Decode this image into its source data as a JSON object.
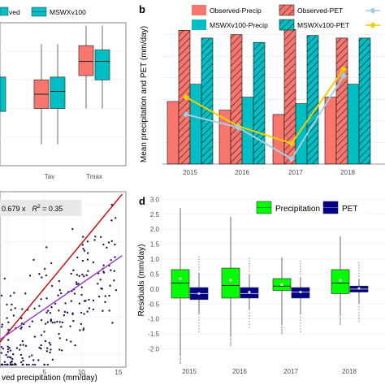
{
  "colors": {
    "observed": "#f8766d",
    "mswx": "#00bfc4",
    "observed_pet_fill": "#f8766d",
    "mswx_pet_fill": "#00bfc4",
    "line_observed": "#f0d000",
    "line_mswx": "#a6cee3",
    "precip_box": "#00ff00",
    "pet_box": "#00008b",
    "fit_red": "#cc0000",
    "fit_purple": "#9933cc",
    "panel_bg": "#ebebeb",
    "grid": "#ffffff"
  },
  "panel_a": {
    "legend": [
      "ved",
      "MSWXv100"
    ],
    "x_labels": [
      "Tav",
      "Tmax"
    ]
  },
  "panel_b": {
    "label": "b",
    "ylabel": "Mean precipitation and PET (mm/day)",
    "legend": [
      "Observed-Precip",
      "Observed-PET",
      "MSWXv100-Precip",
      "MSWXv100-PET"
    ]
  },
  "panel_c": {
    "equation_prefix": "0.679 x",
    "equation_r2": "R",
    "equation_r2_value": " = 0.35",
    "xlabel": "ved precipitation (mm/day)",
    "x_ticks": [
      "5",
      "10",
      "15"
    ]
  },
  "panel_d": {
    "label": "d",
    "ylabel": "Residuals (mm/day)",
    "legend": [
      "Precipitation",
      "PET"
    ]
  },
  "chart_data": [
    {
      "type": "bar",
      "panel": "b",
      "categories": [
        "2015",
        "2016",
        "2017",
        "2018"
      ],
      "ylim": [
        0,
        3.2
      ],
      "series": [
        {
          "name": "Observed-Precip",
          "values": [
            1.45,
            1.25,
            1.15,
            1.55
          ]
        },
        {
          "name": "Observed-PET",
          "values": [
            3.1,
            3.0,
            3.12,
            2.92
          ]
        },
        {
          "name": "MSWXv100-Precip",
          "values": [
            1.85,
            1.55,
            1.4,
            1.85
          ]
        },
        {
          "name": "MSWXv100-PET",
          "values": [
            2.92,
            2.82,
            2.98,
            2.92
          ]
        }
      ],
      "lines": [
        {
          "color_key": "line_observed",
          "values": [
            1.55,
            0.88,
            0.48,
            2.2
          ]
        },
        {
          "color_key": "line_mswx",
          "values": [
            1.15,
            0.85,
            0.12,
            2.05
          ]
        }
      ]
    },
    {
      "type": "box",
      "panel": "d",
      "categories": [
        "2015",
        "2016",
        "2017",
        "2018"
      ],
      "ylim": [
        -2.5,
        3.2
      ],
      "y_ticks": [
        "3.0",
        "2.5",
        "2.0",
        "1.5",
        "1.0",
        "0.5",
        "0.0",
        "-0.5",
        "-1.0",
        "-1.5",
        "-2.0"
      ],
      "series": [
        {
          "name": "Precipitation",
          "stats": [
            {
              "low": -2.25,
              "q1": -0.3,
              "median": 0.2,
              "q3": 0.65,
              "high": 2.55,
              "mean": 0.35
            },
            {
              "low": -1.6,
              "q1": -0.3,
              "median": 0.12,
              "q3": 0.7,
              "high": 2.25,
              "mean": 0.3
            },
            {
              "low": -1.2,
              "q1": -0.05,
              "median": 0.1,
              "q3": 0.35,
              "high": 0.9,
              "mean": 0.15
            },
            {
              "low": -0.9,
              "q1": -0.15,
              "median": 0.2,
              "q3": 0.65,
              "high": 1.6,
              "mean": 0.3
            }
          ]
        },
        {
          "name": "PET",
          "stats": [
            {
              "low": -0.85,
              "q1": -0.35,
              "median": -0.15,
              "q3": 0.05,
              "high": 0.55,
              "mean": -0.15
            },
            {
              "low": -0.7,
              "q1": -0.3,
              "median": -0.15,
              "q3": 0.05,
              "high": 0.5,
              "mean": -0.1
            },
            {
              "low": -0.85,
              "q1": -0.3,
              "median": -0.1,
              "q3": 0.05,
              "high": 0.4,
              "mean": -0.1
            },
            {
              "low": -0.5,
              "q1": -0.1,
              "median": 0.0,
              "q3": 0.1,
              "high": 0.35,
              "mean": 0.02
            }
          ]
        }
      ]
    },
    {
      "type": "scatter",
      "panel": "c",
      "xlim": [
        -1,
        16
      ],
      "ylim": [
        -1,
        13
      ],
      "x_ticks": [
        5,
        10,
        15
      ],
      "lines": [
        {
          "color_key": "fit_red",
          "x": [
            -1,
            15.5
          ],
          "y": [
            1.0,
            12.8
          ]
        },
        {
          "color_key": "fit_purple",
          "x": [
            -1,
            15.5
          ],
          "y": [
            1.2,
            7.9
          ]
        }
      ]
    },
    {
      "type": "box",
      "panel": "a",
      "categories": [
        "Tav",
        "Tmax"
      ],
      "series": [
        {
          "name": "ved",
          "stats": [
            {
              "low": 0.15,
              "q1": 0.4,
              "median": 0.5,
              "q3": 0.6,
              "high": 0.85
            },
            {
              "low": 0.4,
              "q1": 0.63,
              "median": 0.73,
              "q3": 0.84,
              "high": 0.98
            }
          ]
        },
        {
          "name": "MSWXv100",
          "stats": [
            {
              "low": 0.15,
              "q1": 0.4,
              "median": 0.52,
              "q3": 0.62,
              "high": 0.85
            },
            {
              "low": 0.4,
              "q1": 0.6,
              "median": 0.73,
              "q3": 0.81,
              "high": 0.98
            }
          ]
        }
      ]
    }
  ]
}
